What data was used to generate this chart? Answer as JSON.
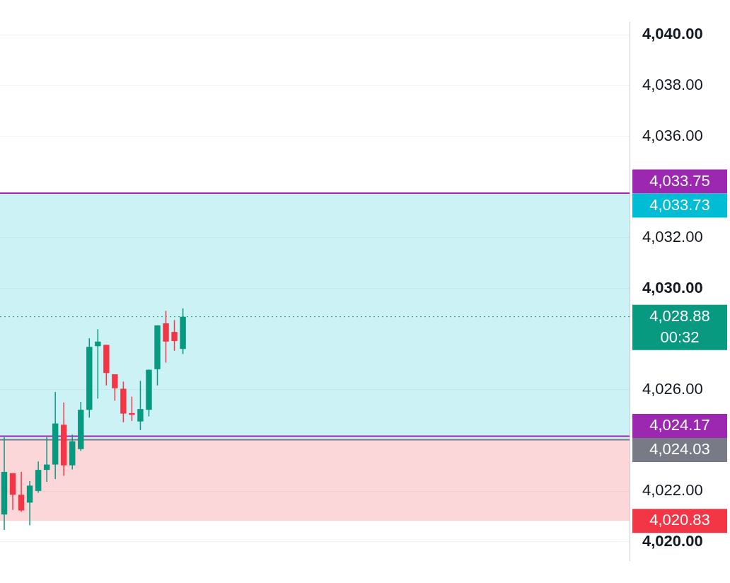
{
  "chart_data": {
    "type": "candlestick",
    "categories": [
      null,
      null,
      null,
      null,
      null,
      null,
      null,
      null,
      null,
      null,
      null,
      null,
      null,
      null,
      null,
      null,
      null,
      null,
      null,
      null,
      null,
      null,
      null,
      null,
      null,
      null,
      null,
      null,
      null,
      null,
      null,
      null,
      null,
      null,
      null,
      null,
      null,
      null,
      null,
      null,
      null,
      null,
      null,
      null,
      null,
      null,
      null,
      null,
      null,
      null,
      null,
      null,
      null,
      null,
      null,
      null,
      null,
      null,
      null,
      null,
      null,
      null,
      null,
      null,
      null,
      null,
      null,
      null,
      null,
      null,
      null,
      null,
      null,
      null
    ],
    "ohlc": [
      [
        4021.08,
        4024.13,
        4020.47,
        4022.76
      ],
      [
        4022.71,
        4022.71,
        4021.26,
        4021.86
      ],
      [
        4021.86,
        4022.76,
        4021.19,
        4021.24
      ],
      [
        4021.55,
        4022.4,
        4020.65,
        4022.22
      ],
      [
        4022.01,
        4023.17,
        4021.94,
        4022.84
      ],
      [
        4022.84,
        4024.13,
        4022.37,
        4023.05
      ],
      [
        4023.05,
        4025.91,
        4022.48,
        4024.67
      ],
      [
        4024.62,
        4025.5,
        4022.61,
        4023.02
      ],
      [
        4023.02,
        4024.23,
        4022.86,
        4023.97
      ],
      [
        4023.66,
        4025.52,
        4023.59,
        4025.21
      ],
      [
        4025.21,
        4028.03,
        4024.9,
        4027.69
      ],
      [
        4027.72,
        4028.39,
        4025.65,
        4027.9
      ],
      [
        4027.77,
        4027.77,
        4026.17,
        4026.66
      ],
      [
        4026.61,
        4026.61,
        4025.57,
        4026.06
      ],
      [
        4026.04,
        4026.32,
        4024.72,
        4025.06
      ],
      [
        4025.08,
        4025.73,
        4024.77,
        4025.01
      ],
      [
        4024.75,
        4026.35,
        4024.41,
        4025.24
      ],
      [
        4025.21,
        4026.79,
        4024.95,
        4026.79
      ],
      [
        4026.81,
        4028.54,
        4026.17,
        4028.54
      ],
      [
        4028.62,
        4029.11,
        4027.07,
        4027.9
      ],
      [
        4028.28,
        4028.75,
        4027.54,
        4027.92
      ],
      [
        4027.61,
        4029.21,
        4027.41,
        4028.88
      ],
      null,
      null,
      null,
      null,
      null,
      null,
      null,
      null,
      null,
      null,
      null,
      null,
      null,
      null,
      null,
      null,
      null,
      null,
      null,
      null,
      null,
      null,
      null,
      null,
      null,
      null,
      null,
      null,
      null,
      null,
      null,
      null,
      null,
      null,
      null,
      null,
      null,
      null,
      null,
      null,
      null,
      null,
      null,
      null,
      null,
      null,
      null,
      null,
      null,
      null,
      null,
      null
    ],
    "colors": [
      "#089981",
      "#f23645",
      "#f23645",
      "#089981",
      "#089981",
      "#089981",
      "#089981",
      "#f23645",
      "#089981",
      "#089981",
      "#089981",
      "#089981",
      "#f23645",
      "#f23645",
      "#f23645",
      "#f23645",
      "#089981",
      "#089981",
      "#089981",
      "#f23645",
      "#f23645",
      "#089981",
      null,
      null,
      null,
      null,
      null,
      null,
      null,
      null,
      null,
      null,
      null,
      null,
      null,
      null,
      null,
      null,
      null,
      null,
      null,
      null,
      null,
      null,
      null,
      null,
      null,
      null,
      null,
      null,
      null,
      null,
      null,
      null,
      null,
      null,
      null,
      null,
      null,
      null,
      null,
      null,
      null,
      null,
      null,
      null,
      null,
      null,
      null,
      null,
      null,
      null,
      null,
      null
    ],
    "ylim": [
      4019.25,
      4040.5
    ],
    "yticks": [
      {
        "value": 4020,
        "label": "4,020.00"
      },
      {
        "value": 4022,
        "label": "4,022.00"
      },
      {
        "value": 4026,
        "label": "4,026.00"
      },
      {
        "value": 4030,
        "label": "4,030.00"
      },
      {
        "value": 4032,
        "label": "4,032.00"
      },
      {
        "value": 4036,
        "label": "4,036.00"
      },
      {
        "value": 4038,
        "label": "4,038.00"
      },
      {
        "value": 4040,
        "label": "4,040.00"
      }
    ],
    "grid": "y",
    "tick_labels": "y",
    "bands": [
      {
        "axis": "y",
        "from": 4024.03,
        "to": 4033.73,
        "label": "4,033.73",
        "color": "#00bcd4"
      },
      {
        "axis": "y",
        "from": 4024.03,
        "to": 4020.83,
        "label": "4,020.83",
        "color": "#f23645"
      }
    ],
    "ref_lines": [
      {
        "axis": "y",
        "value": 4033.75,
        "label": "4,033.75",
        "color": "#9c27b0"
      },
      {
        "axis": "y",
        "value": 4024.17,
        "label": "4,024.17",
        "color": "#9c27b0"
      },
      {
        "axis": "y",
        "value": 4024.03,
        "label": "4,024.03",
        "color": "#787b86"
      },
      {
        "axis": "y",
        "value": 4028.88,
        "label": "4,028.88\n00:32",
        "color": "#089981",
        "line_style": "dotted"
      }
    ]
  }
}
